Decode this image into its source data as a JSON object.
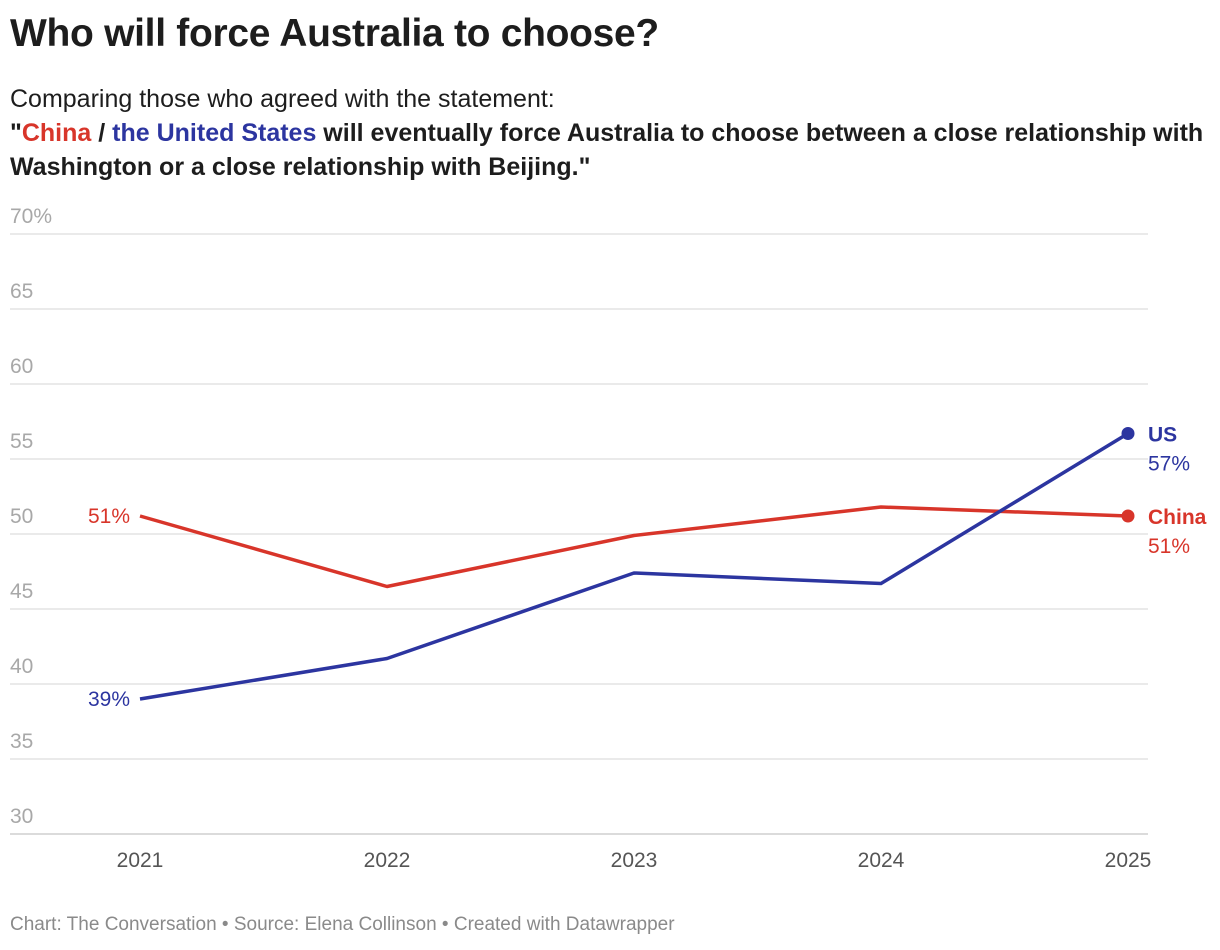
{
  "title": "Who will force Australia to choose?",
  "subtitle": {
    "line1": "Comparing those who agreed with the statement:",
    "quote_open": "\"",
    "china": "China",
    "slash": " / ",
    "us": "the United States",
    "rest": " will eventually force Australia to choose between a close relationship with Washington or a close relationship with Beijing.\""
  },
  "footer": "Chart: The Conversation • Source: Elena Collinson • Created with Datawrapper",
  "chart_data": {
    "type": "line",
    "x": [
      "2021",
      "2022",
      "2023",
      "2024",
      "2025"
    ],
    "ylim": [
      30,
      70
    ],
    "yticks": [
      30,
      35,
      40,
      45,
      50,
      55,
      60,
      65,
      70
    ],
    "ytick_labels": [
      "30",
      "35",
      "40",
      "45",
      "50",
      "55",
      "60",
      "65",
      "70%"
    ],
    "grid": true,
    "series": [
      {
        "name": "China",
        "color": "#d8352a",
        "values": [
          51.2,
          46.5,
          49.9,
          51.8,
          51.2
        ],
        "start_label": "51%",
        "end_label": "51%"
      },
      {
        "name": "US",
        "color": "#2c35a0",
        "values": [
          39.0,
          41.7,
          47.4,
          46.7,
          56.7
        ],
        "start_label": "39%",
        "end_label": "57%"
      }
    ]
  }
}
